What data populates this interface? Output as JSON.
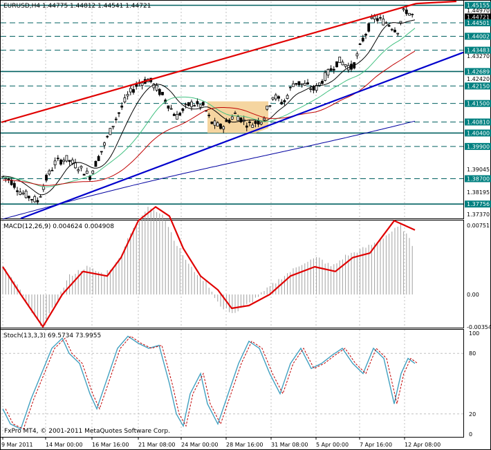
{
  "main_chart": {
    "symbol_line": "EURUSD,H4  1.44775 1.44812 1.44541 1.44721",
    "scale_labels": [
      "1.45155",
      "1.44970",
      "1.44721",
      "1.44501",
      "1.44002",
      "1.43483",
      "1.43270",
      "1.42689",
      "1.42420",
      "1.42150",
      "1.41500",
      "1.40810",
      "1.40400",
      "1.39900",
      "1.39045",
      "1.38700",
      "1.38195",
      "1.37756",
      "1.37370"
    ],
    "highlighted_scale_labels": [
      "1.45155",
      "1.44501",
      "1.44002",
      "1.43483",
      "1.42689",
      "1.42150",
      "1.41500",
      "1.40810",
      "1.40400",
      "1.39900",
      "1.38700",
      "1.37756"
    ],
    "current_price_label": "1.44721"
  },
  "macd": {
    "title": "MACD(12,26,9) 0.004624 0.004908",
    "scale_labels": [
      "0.00751",
      "0.00",
      "-0.00354"
    ]
  },
  "stoch": {
    "title": "Stoch(13,3,3) 69.5734 73.9955",
    "scale_labels": [
      "100",
      "80",
      "20",
      "0"
    ]
  },
  "time_axis": {
    "labels": [
      "9 Mar 2011",
      "14 Mar 00:00",
      "16 Mar 16:00",
      "21 Mar 08:00",
      "24 Mar 00:00",
      "28 Mar 16:00",
      "31 Mar 08:00",
      "5 Apr 00:00",
      "7 Apr 16:00",
      "12 Apr 08:00"
    ]
  },
  "footer": {
    "copyright": "FxPro MT4, © 2001-2011 MetaQuotes Software Corp."
  },
  "colors": {
    "grid": "#c0c0c0",
    "level_line": "#006060",
    "level_bg": "#008080",
    "red_channel": "#e00000",
    "blue_trend": "#0000cc",
    "ma_black": "#000000",
    "ma_green": "#40c080",
    "ma_red": "#c00000",
    "ma_blue": "#0000a0",
    "macd_signal": "#e00000",
    "macd_hist": "#a0a0a0",
    "stoch_main": "#40a0c0",
    "stoch_signal": "#c00000",
    "box_fill": "#f5d5a0"
  }
}
